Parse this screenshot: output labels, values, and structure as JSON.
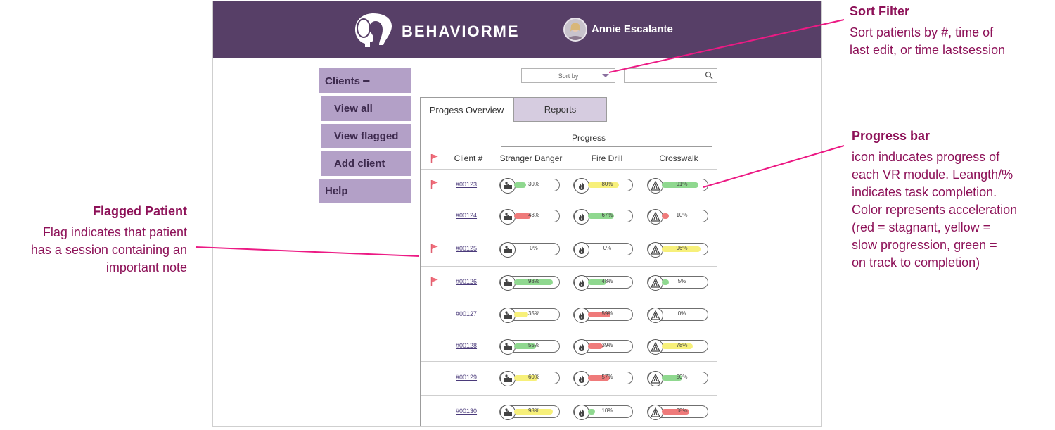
{
  "brand": {
    "name": "BEHAVIORME"
  },
  "user": {
    "name": "Annie Escalante"
  },
  "sidebar": {
    "items": [
      {
        "label": "Clients ━"
      },
      {
        "label": "View all"
      },
      {
        "label": "View flagged"
      },
      {
        "label": "Add client"
      },
      {
        "label": "Help"
      }
    ]
  },
  "toolbar": {
    "sort_label": "Sort by"
  },
  "tabs": [
    {
      "label": "Progess Overview"
    },
    {
      "label": "Reports"
    }
  ],
  "table": {
    "group_header": "Progress",
    "headers": {
      "client": "Client #",
      "m1": "Stranger Danger",
      "m2": "Fire Drill",
      "m3": "Crosswalk"
    },
    "rows": [
      {
        "flagged": true,
        "client": "#00123",
        "m1": {
          "pct": "30%",
          "value": 30,
          "color": "green"
        },
        "m2": {
          "pct": "80%",
          "value": 80,
          "color": "yellow"
        },
        "m3": {
          "pct": "91%",
          "value": 91,
          "color": "green"
        }
      },
      {
        "flagged": false,
        "client": "#00124",
        "m1": {
          "pct": "43%",
          "value": 43,
          "color": "red"
        },
        "m2": {
          "pct": "67%",
          "value": 67,
          "color": "green"
        },
        "m3": {
          "pct": "10%",
          "value": 10,
          "color": "red"
        }
      },
      {
        "flagged": true,
        "client": "#00125",
        "m1": {
          "pct": "0%",
          "value": 0,
          "color": "green"
        },
        "m2": {
          "pct": "0%",
          "value": 0,
          "color": "green"
        },
        "m3": {
          "pct": "96%",
          "value": 96,
          "color": "yellow"
        }
      },
      {
        "flagged": true,
        "client": "#00126",
        "m1": {
          "pct": "98%",
          "value": 98,
          "color": "green"
        },
        "m2": {
          "pct": "48%",
          "value": 48,
          "color": "green"
        },
        "m3": {
          "pct": "5%",
          "value": 5,
          "color": "green"
        }
      },
      {
        "flagged": false,
        "client": "#00127",
        "m1": {
          "pct": "35%",
          "value": 35,
          "color": "yellow"
        },
        "m2": {
          "pct": "59%",
          "value": 59,
          "color": "red"
        },
        "m3": {
          "pct": "0%",
          "value": 0,
          "color": "green"
        }
      },
      {
        "flagged": false,
        "client": "#00128",
        "m1": {
          "pct": "55%",
          "value": 55,
          "color": "green"
        },
        "m2": {
          "pct": "39%",
          "value": 39,
          "color": "red"
        },
        "m3": {
          "pct": "78%",
          "value": 78,
          "color": "yellow"
        }
      },
      {
        "flagged": false,
        "client": "#00129",
        "m1": {
          "pct": "60%",
          "value": 60,
          "color": "yellow"
        },
        "m2": {
          "pct": "57%",
          "value": 57,
          "color": "red"
        },
        "m3": {
          "pct": "50%",
          "value": 50,
          "color": "green"
        }
      },
      {
        "flagged": false,
        "client": "#00130",
        "m1": {
          "pct": "98%",
          "value": 98,
          "color": "yellow"
        },
        "m2": {
          "pct": "10%",
          "value": 10,
          "color": "green"
        },
        "m3": {
          "pct": "68%",
          "value": 68,
          "color": "red"
        }
      }
    ]
  },
  "colors": {
    "header": "#573f67",
    "sidebar": "#b3a0c7",
    "flag": "#f06d7a",
    "green": "#8fd88f",
    "yellow": "#f7f07a",
    "red": "#ef7a7a",
    "annotation": "#8d1158",
    "leader": "#ec1a84"
  },
  "annotations": {
    "sort": {
      "title": "Sort Filter",
      "lines": [
        "Sort patients by #, time of",
        "last edit, or time lastsession"
      ]
    },
    "progress": {
      "title": "Progress bar",
      "lines": [
        "icon inducates progress of",
        "each VR module.  Leangth/%",
        "indicates task completion.",
        "Color represents acceleration",
        "(red = stagnant, yellow =",
        "slow progression, green =",
        "on track to completion)"
      ]
    },
    "flagged": {
      "title": "Flagged Patient",
      "lines": [
        "Flag indicates that patient",
        "has a session containing an",
        "important note"
      ]
    }
  }
}
